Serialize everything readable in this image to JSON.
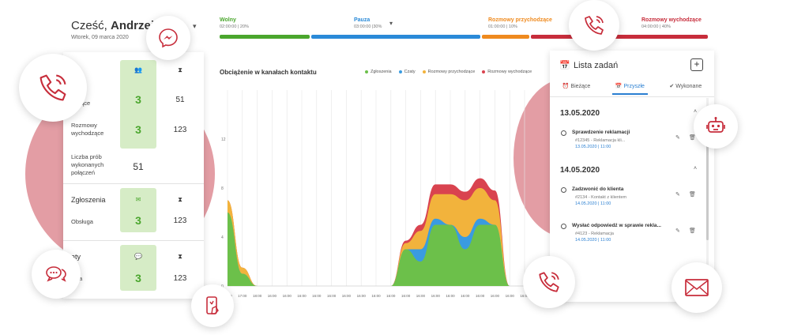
{
  "header": {
    "greeting_prefix": "Cześć,",
    "greeting_name": "Andrzej",
    "date": "Wtorek, 09 marca 2020"
  },
  "status_bar": [
    {
      "label": "Wolny",
      "sub": "02:00:00 | 20%",
      "color": "#4aa62d"
    },
    {
      "label": "Pauza",
      "sub": "03:00:00 |30%",
      "color": "#2a8ad8"
    },
    {
      "label": "Rozmowy przychodzące",
      "sub": "01:00:00 | 10%",
      "color": "#ef8a1e"
    },
    {
      "label": "Rozmowy wychodzące",
      "sub": "04:00:00 | 40%",
      "color": "#c72d3b"
    }
  ],
  "left_panel": {
    "calls_partial_header": "y",
    "incoming_label_partial": "odzące",
    "incoming_green_value": "3",
    "incoming_value": "51",
    "outgoing_label": "Rozmowy wychodzące",
    "outgoing_green_value": "3",
    "outgoing_value": "123",
    "attempts_label": "Liczba prób wykonanych połączeń",
    "attempts_value": "51",
    "tickets_header": "Zgłoszenia",
    "tickets_label": "Obsługa",
    "tickets_green_value": "3",
    "tickets_value": "123",
    "chats_partial_header": "aty",
    "chats_label_partial": "ługa",
    "chats_green_value": "3",
    "chats_value": "123"
  },
  "chart_data": {
    "type": "area",
    "title": "Obciążenie w kanałach kontaktu",
    "legend": [
      "Zgłoszenia",
      "Czaty",
      "Rozmowy przychodzące",
      "Rozmowy wychodzące"
    ],
    "colors": [
      "#6cc04a",
      "#3a9be0",
      "#f2b33c",
      "#d9434f"
    ],
    "y_ticks": [
      "12",
      "8",
      "4",
      "0"
    ],
    "ylim": [
      0,
      16
    ],
    "x": [
      "16:00",
      "17:00",
      "18:00",
      "16:00",
      "16:00",
      "16:00",
      "16:00",
      "16:00",
      "16:00",
      "16:00",
      "16:00",
      "16:00",
      "16:00",
      "16:00",
      "16:00",
      "16:00",
      "16:00",
      "16:00",
      "16:00",
      "16:00",
      "16:00"
    ],
    "series": [
      {
        "name": "Zgłoszenia",
        "values": [
          6,
          1,
          0,
          0,
          0,
          0,
          0,
          0,
          0,
          0,
          0,
          0,
          3,
          2,
          5,
          5,
          3,
          5,
          5,
          0,
          0
        ]
      },
      {
        "name": "Czaty",
        "values": [
          0,
          0,
          0,
          0,
          0,
          0,
          0,
          0,
          0,
          0,
          0,
          0,
          0,
          1,
          0.5,
          0,
          1,
          0.5,
          0,
          0,
          0
        ]
      },
      {
        "name": "Rozmowy przychodzące",
        "values": [
          1,
          0.5,
          0,
          0,
          0,
          0,
          0,
          0,
          0,
          0,
          0,
          0,
          0.5,
          1.5,
          2,
          2.5,
          3,
          2.5,
          2,
          0,
          0
        ]
      },
      {
        "name": "Rozmowy wychodzące",
        "values": [
          0,
          0,
          0,
          0,
          0,
          0,
          0,
          0,
          0,
          0,
          0,
          0,
          0.2,
          0.5,
          0.8,
          0.8,
          0.7,
          0.8,
          0.8,
          0,
          0
        ]
      }
    ]
  },
  "tasks": {
    "title": "Lista zadań",
    "add_label": "+",
    "tabs": [
      "Bieżące",
      "Przyszłe",
      "Wykonane"
    ],
    "days": [
      {
        "date": "13.05.2020",
        "items": [
          {
            "title": "Sprawdzenie reklamacji",
            "sub": "#12345 - Reklamacja kli...",
            "date": "13.05.2020 | 11:00"
          }
        ]
      },
      {
        "date": "14.05.2020",
        "items": [
          {
            "title": "Zadzwonić do klienta",
            "sub": "#2134 - Kontakt z klientem",
            "date": "14.05.2020 | 11:00"
          },
          {
            "title": "Wysłać odpowiedź w sprawie rekla...",
            "sub": "#4123 - Reklamacja",
            "date": "14.05.2020 | 11:00"
          }
        ]
      }
    ]
  },
  "icons": [
    "messenger-icon",
    "phone-icon",
    "chat-bubbles-icon",
    "phone-tap-icon",
    "robot-icon",
    "mail-icon"
  ],
  "accent_color": "#c72d3b"
}
